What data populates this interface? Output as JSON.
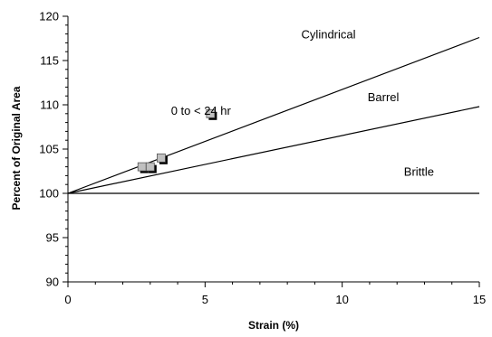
{
  "chart_data": {
    "type": "line",
    "title": "",
    "xlabel": "Strain (%)",
    "ylabel": "Percent of Original Area",
    "xlim": [
      0,
      15
    ],
    "ylim": [
      90,
      120
    ],
    "xticks": [
      0,
      5,
      10,
      15
    ],
    "yticks": [
      90,
      95,
      100,
      105,
      110,
      115,
      120
    ],
    "xtick_labels": [
      "0",
      "5",
      "10",
      "15"
    ],
    "ytick_labels": [
      "90",
      "95",
      "100",
      "105",
      "110",
      "115",
      "120"
    ],
    "grid": false,
    "legend": "none",
    "series": [
      {
        "name": "Cylindrical",
        "type": "line",
        "x": [
          0,
          15
        ],
        "y": [
          100,
          117.6
        ],
        "color": "#000000"
      },
      {
        "name": "Barrel",
        "type": "line",
        "x": [
          0,
          15
        ],
        "y": [
          100,
          109.8
        ],
        "color": "#000000"
      },
      {
        "name": "Brittle",
        "type": "line",
        "x": [
          0,
          15
        ],
        "y": [
          100,
          100
        ],
        "color": "#000000"
      },
      {
        "type": "scatter",
        "marker": "square",
        "fill": "#c0c0c0",
        "x": [
          2.7,
          3.0,
          3.4,
          5.2
        ],
        "y": [
          103.0,
          103.0,
          104.0,
          109.0
        ]
      }
    ],
    "annotations": [
      {
        "text": "Cylindrical",
        "x": 9.5,
        "y": 117.5
      },
      {
        "text": "Barrel",
        "x": 11.5,
        "y": 110.4
      },
      {
        "text": "Brittle",
        "x": 12.8,
        "y": 102.0
      },
      {
        "text": "0 to < 24 hr",
        "x": 4.85,
        "y": 108.9
      }
    ]
  }
}
